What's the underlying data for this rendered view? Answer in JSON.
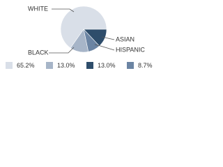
{
  "chart_data": {
    "type": "pie",
    "categories": [
      "WHITE",
      "BLACK",
      "ASIAN",
      "HISPANIC"
    ],
    "values": [
      65.2,
      13.0,
      13.0,
      8.7
    ],
    "value_labels": [
      "65.2%",
      "13.0%",
      "13.0%",
      "8.7%"
    ],
    "colors": [
      "#d9dfe8",
      "#a7b5c8",
      "#2e4d6b",
      "#6b84a3"
    ]
  }
}
